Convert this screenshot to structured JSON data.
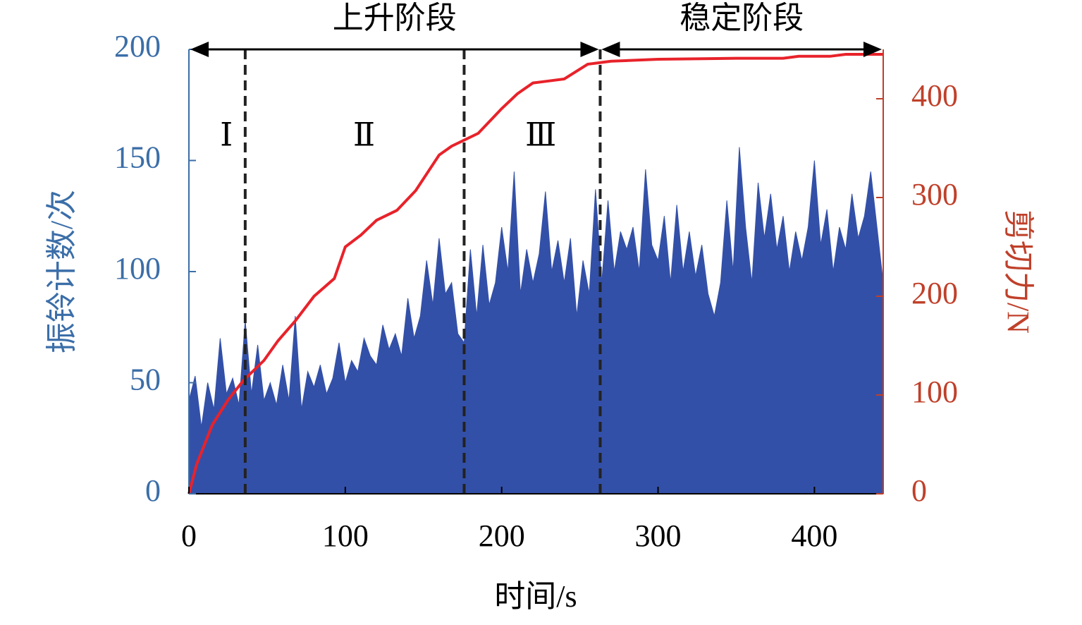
{
  "chart_data": {
    "type": "area-line",
    "xlabel": "时间/s",
    "ylabel": "振铃计数/次",
    "y2label": "剪切力/N",
    "xlim": [
      0,
      444
    ],
    "xticks": [
      0,
      100,
      200,
      300,
      400
    ],
    "ylim": [
      0,
      200
    ],
    "yticks": [
      0,
      50,
      100,
      150,
      200
    ],
    "y2lim": [
      0,
      450
    ],
    "y2ticks": [
      0,
      100,
      200,
      300,
      400
    ],
    "series": [
      {
        "name": "振铃计数",
        "color": "#3350a8",
        "x": [
          0,
          4,
          8,
          12,
          16,
          20,
          24,
          28,
          32,
          36,
          40,
          44,
          48,
          52,
          56,
          60,
          64,
          68,
          72,
          76,
          80,
          84,
          88,
          92,
          96,
          100,
          104,
          108,
          112,
          116,
          120,
          124,
          128,
          132,
          136,
          140,
          144,
          148,
          152,
          156,
          160,
          164,
          168,
          172,
          176,
          180,
          184,
          188,
          192,
          196,
          200,
          204,
          208,
          212,
          216,
          220,
          224,
          228,
          232,
          236,
          240,
          244,
          248,
          252,
          256,
          260,
          264,
          268,
          272,
          276,
          280,
          284,
          288,
          292,
          296,
          300,
          304,
          308,
          312,
          316,
          320,
          324,
          328,
          332,
          336,
          340,
          344,
          348,
          352,
          356,
          360,
          364,
          368,
          372,
          376,
          380,
          384,
          388,
          392,
          396,
          400,
          404,
          408,
          412,
          416,
          420,
          424,
          428,
          432,
          436,
          440,
          444
        ],
        "values": [
          42,
          53,
          30,
          50,
          38,
          70,
          45,
          52,
          40,
          78,
          45,
          67,
          42,
          50,
          40,
          58,
          42,
          80,
          38,
          55,
          48,
          58,
          45,
          52,
          68,
          50,
          60,
          55,
          70,
          62,
          58,
          76,
          65,
          72,
          62,
          88,
          70,
          80,
          105,
          85,
          115,
          90,
          95,
          72,
          68,
          110,
          80,
          112,
          85,
          95,
          120,
          100,
          145,
          90,
          110,
          95,
          108,
          136,
          100,
          114,
          95,
          115,
          80,
          105,
          90,
          137,
          95,
          132,
          100,
          118,
          110,
          120,
          100,
          146,
          112,
          105,
          125,
          95,
          130,
          100,
          118,
          98,
          112,
          90,
          80,
          95,
          132,
          100,
          156,
          120,
          95,
          140,
          115,
          135,
          110,
          125,
          100,
          118,
          105,
          120,
          150,
          112,
          128,
          100,
          120,
          110,
          135,
          115,
          125,
          145,
          120,
          95
        ]
      },
      {
        "name": "剪切力",
        "color": "#e8222a",
        "axis": "y2",
        "x": [
          0,
          5,
          15,
          25,
          35,
          48,
          57,
          68,
          80,
          93,
          100,
          110,
          120,
          133,
          145,
          160,
          168,
          185,
          200,
          210,
          220,
          230,
          240,
          255,
          270,
          300,
          350,
          380,
          390,
          410,
          420,
          444
        ],
        "values": [
          0,
          30,
          70,
          95,
          115,
          135,
          155,
          175,
          200,
          218,
          250,
          262,
          277,
          287,
          307,
          343,
          352,
          365,
          390,
          405,
          416,
          418,
          420,
          435,
          438,
          440,
          441,
          441,
          443,
          443,
          445,
          445
        ]
      }
    ],
    "dividers": [
      36,
      176,
      263
    ],
    "regions": [
      {
        "label": "Ⅰ",
        "x": 24
      },
      {
        "label": "Ⅱ",
        "x": 112
      },
      {
        "label": "Ⅲ",
        "x": 225
      }
    ],
    "phases": [
      {
        "label": "上升阶段",
        "start": 0,
        "end": 263
      },
      {
        "label": "稳定阶段",
        "start": 263,
        "end": 444
      }
    ]
  }
}
